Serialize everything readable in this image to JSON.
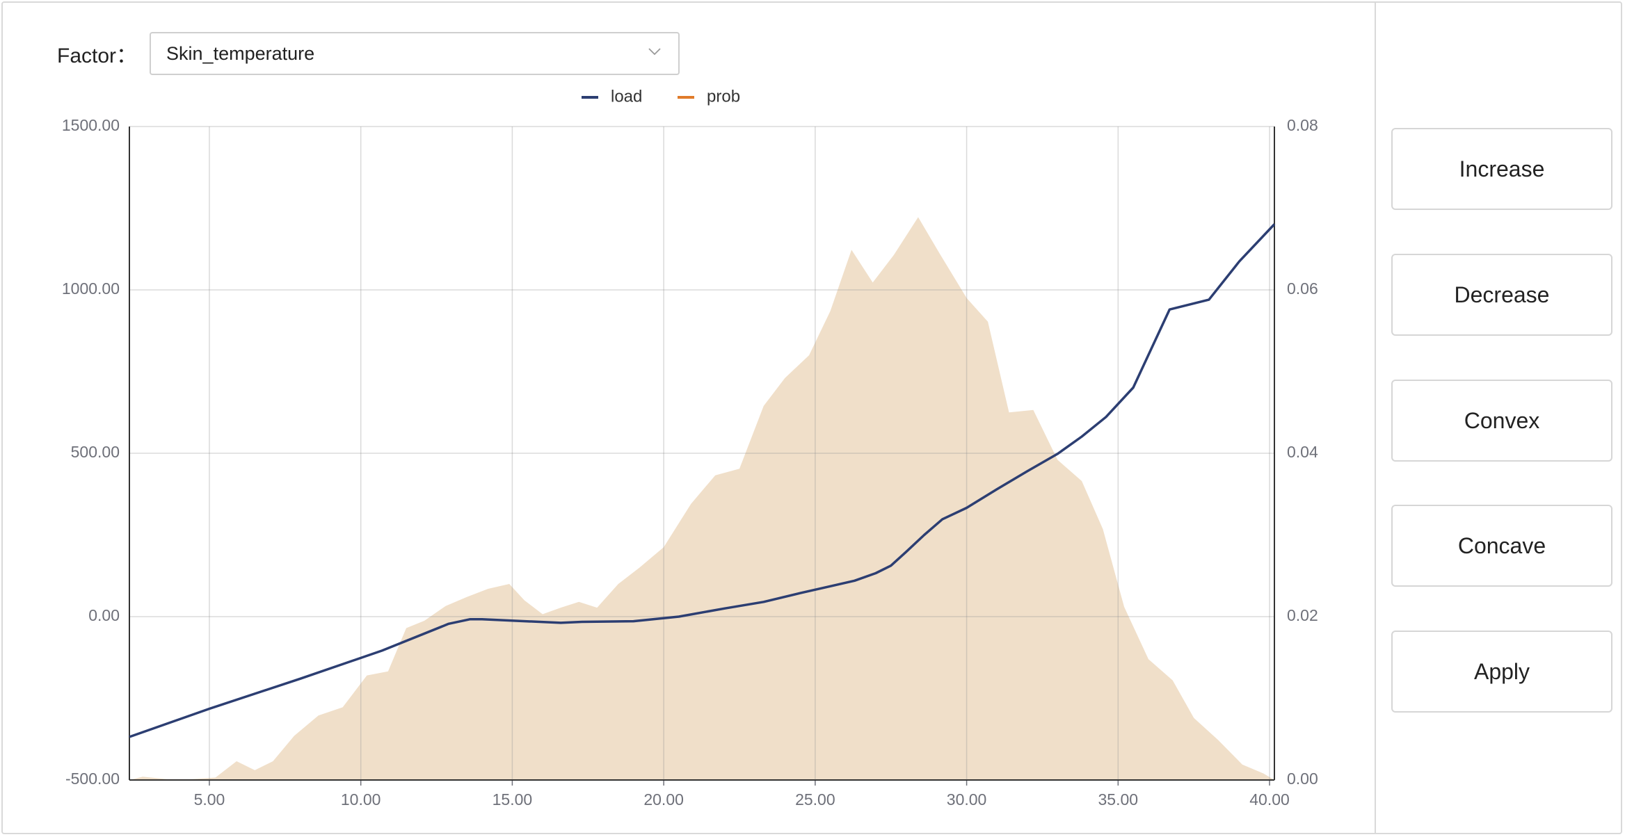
{
  "factor": {
    "label": "Factor：",
    "selected": "Skin_temperature"
  },
  "buttons": {
    "increase": "Increase",
    "decrease": "Decrease",
    "convex": "Convex",
    "concave": "Concave",
    "apply": "Apply"
  },
  "chart_data": {
    "type": "line",
    "legend": [
      {
        "name": "load",
        "color": "#2c3e72"
      },
      {
        "name": "prob",
        "color": "#e07b2a"
      }
    ],
    "legend_position": "top-center",
    "grid": true,
    "xlim": [
      2.36,
      40.16
    ],
    "x_ticks": [
      "5.00",
      "10.00",
      "15.00",
      "20.00",
      "25.00",
      "30.00",
      "35.00",
      "40.00"
    ],
    "y_left": {
      "ylim": [
        -500,
        1500
      ],
      "ticks": [
        "1500.00",
        "1000.00",
        "500.00",
        "0.00",
        "-500.00"
      ]
    },
    "y_right": {
      "ylim": [
        0,
        0.08
      ],
      "ticks": [
        "0.08",
        "0.06",
        "0.04",
        "0.02",
        "0.00"
      ]
    },
    "series": [
      {
        "name": "load",
        "axis": "left",
        "color": "#2c3e72",
        "x": [
          2.36,
          5.0,
          8.0,
          10.7,
          12.9,
          13.6,
          14.0,
          16.6,
          17.3,
          19.0,
          20.5,
          22.0,
          23.3,
          24.5,
          25.5,
          26.3,
          27.0,
          27.5,
          28.0,
          28.6,
          29.2,
          30.0,
          31.0,
          32.0,
          33.0,
          33.8,
          34.6,
          35.5,
          36.7,
          38.0,
          39.0,
          40.16
        ],
        "values": [
          -368,
          -282,
          -190,
          -104,
          -22,
          -8,
          -8,
          -19,
          -16,
          -14,
          0,
          25,
          45,
          72,
          93,
          110,
          133,
          156,
          198,
          250,
          298,
          333,
          390,
          445,
          498,
          551,
          611,
          701,
          940,
          970,
          1087,
          1201
        ]
      },
      {
        "name": "prob",
        "axis": "right",
        "type": "area",
        "color": "#f0dfc9",
        "x": [
          2.36,
          2.8,
          3.6,
          4.4,
          5.2,
          5.9,
          6.5,
          7.1,
          7.8,
          8.6,
          9.4,
          10.2,
          10.9,
          11.5,
          12.1,
          12.8,
          13.5,
          14.2,
          14.9,
          15.4,
          16.0,
          16.6,
          17.2,
          17.8,
          18.5,
          19.2,
          20.0,
          20.9,
          21.7,
          22.5,
          23.3,
          24.0,
          24.8,
          25.5,
          26.2,
          26.9,
          27.6,
          28.4,
          29.1,
          30.0,
          30.7,
          31.4,
          32.2,
          33.0,
          33.8,
          34.5,
          35.2,
          36.0,
          36.8,
          37.5,
          38.3,
          39.1,
          39.8,
          40.16
        ],
        "values": [
          0.0,
          0.0004,
          0.0001,
          0.0001,
          0.0003,
          0.0023,
          0.0012,
          0.0023,
          0.0054,
          0.0079,
          0.0089,
          0.0128,
          0.0133,
          0.0186,
          0.0195,
          0.0213,
          0.0224,
          0.0234,
          0.024,
          0.022,
          0.0203,
          0.0211,
          0.0218,
          0.0211,
          0.024,
          0.026,
          0.0285,
          0.0338,
          0.0373,
          0.0381,
          0.0458,
          0.0492,
          0.052,
          0.0574,
          0.0649,
          0.0609,
          0.0643,
          0.0689,
          0.0645,
          0.059,
          0.0561,
          0.045,
          0.0453,
          0.0392,
          0.0366,
          0.0307,
          0.0212,
          0.0148,
          0.0122,
          0.0076,
          0.0049,
          0.0019,
          0.0008,
          0.0
        ]
      }
    ]
  }
}
